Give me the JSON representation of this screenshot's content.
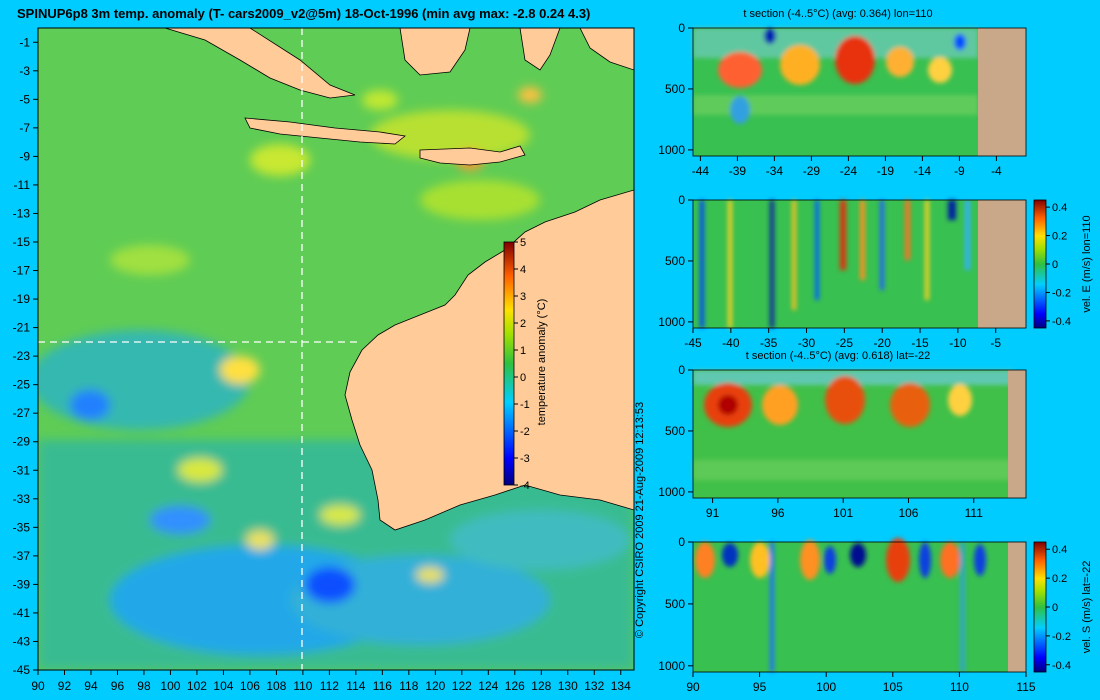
{
  "chart_data": [
    {
      "type": "heatmap",
      "title": "SPINUP6p8 3m temp. anomaly (T- cars2009_v2@5m) 18-Oct-1996 (min avg max: -2.8 0.24 4.3)",
      "xticks": [
        "90",
        "92",
        "94",
        "96",
        "98",
        "100",
        "102",
        "104",
        "106",
        "108",
        "110",
        "112",
        "114",
        "116",
        "118",
        "120",
        "122",
        "124",
        "126",
        "128",
        "130",
        "132",
        "134"
      ],
      "yticks": [
        "-1",
        "-3",
        "-5",
        "-7",
        "-9",
        "-11",
        "-13",
        "-15",
        "-17",
        "-19",
        "-21",
        "-23",
        "-25",
        "-27",
        "-29",
        "-31",
        "-33",
        "-35",
        "-37",
        "-39",
        "-41",
        "-43",
        "-45"
      ],
      "xlim": [
        90,
        135
      ],
      "ylim": [
        -45,
        0
      ],
      "section_lines": {
        "lon": 110,
        "lat": -22
      },
      "colorbar": {
        "label": "temperature anomaly (°C)",
        "ticks": [
          "5",
          "4",
          "3",
          "2",
          "1",
          "0",
          "-1",
          "-2",
          "-3",
          "-4"
        ],
        "range": [
          -4,
          5
        ]
      },
      "copyright": "© Copyright CSIRO 2009   21-Aug-2009 12:13:53"
    },
    {
      "type": "heatmap",
      "title": "t section (-4..5°C) (avg: 0.364) lon=110",
      "xticks": [
        "-44",
        "-39",
        "-34",
        "-29",
        "-24",
        "-19",
        "-14",
        "-9",
        "-4"
      ],
      "yticks": [
        "0",
        "500",
        "1000"
      ],
      "xlim": [
        -45,
        0
      ],
      "ylim": [
        1050,
        0
      ],
      "land_from": -8.5
    },
    {
      "type": "heatmap",
      "title": "",
      "xticks": [
        "-45",
        "-40",
        "-35",
        "-30",
        "-25",
        "-20",
        "-15",
        "-10",
        "-5"
      ],
      "yticks": [
        "0",
        "500",
        "1000"
      ],
      "xlim": [
        -45,
        -1
      ],
      "ylim": [
        1050,
        0
      ],
      "land_from": -8.2,
      "colorbar": {
        "label": "vel. E (m/s) lon=110",
        "ticks": [
          "0.4",
          "0.2",
          "0",
          "-0.2",
          "-0.4"
        ],
        "range": [
          -0.45,
          0.45
        ]
      }
    },
    {
      "type": "heatmap",
      "title": "t section (-4..5°C) (avg: 0.618) lat=-22",
      "xticks": [
        "91",
        "96",
        "101",
        "106",
        "111"
      ],
      "yticks": [
        "0",
        "500",
        "1000"
      ],
      "xlim": [
        89.5,
        115
      ],
      "ylim": [
        1050,
        0
      ],
      "land_from": 113.8
    },
    {
      "type": "heatmap",
      "title": "",
      "xticks": [
        "90",
        "95",
        "100",
        "105",
        "110",
        "115"
      ],
      "yticks": [
        "0",
        "500",
        "1000"
      ],
      "xlim": [
        90,
        115
      ],
      "ylim": [
        1050,
        0
      ],
      "land_from": 113.8,
      "colorbar": {
        "label": "vel. S (m/s) lat=-22",
        "ticks": [
          "0.4",
          "0.2",
          "0",
          "-0.2",
          "-0.4"
        ],
        "range": [
          -0.45,
          0.45
        ]
      }
    }
  ],
  "colors": {
    "background": "#00ccff",
    "land_map": "#ffcc99",
    "land_section": "#c8a888",
    "cmap": [
      "#00007f",
      "#0000ff",
      "#007fff",
      "#00cfff",
      "#40e0a0",
      "#00c040",
      "#a0e000",
      "#ffe000",
      "#ff8000",
      "#e00000",
      "#800000"
    ]
  }
}
